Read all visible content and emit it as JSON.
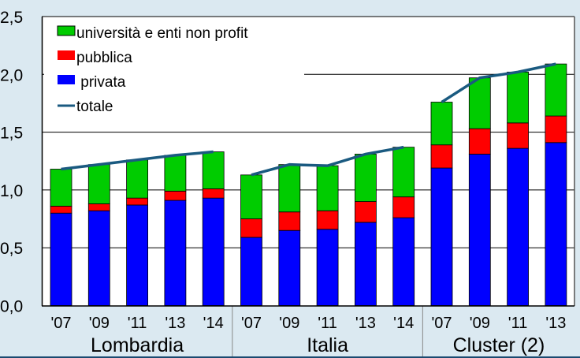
{
  "chart_data": {
    "type": "bar",
    "stacked": true,
    "ylim": [
      0,
      2.5
    ],
    "yticks": [
      "0,0",
      "0,5",
      "1,0",
      "1,5",
      "2,0",
      "2,5"
    ],
    "ytick_values": [
      0,
      0.5,
      1.0,
      1.5,
      2.0,
      2.5
    ],
    "grid": true,
    "legend_placement": "top-left",
    "groups": [
      {
        "label": "Lombardia",
        "categories": [
          "'07",
          "'09",
          "'11",
          "'13",
          "'14"
        ]
      },
      {
        "label": "Italia",
        "categories": [
          "'07",
          "'09",
          "'11",
          "'13",
          "'14"
        ]
      },
      {
        "label": "Cluster (2)",
        "categories": [
          "'07",
          "'09",
          "'11",
          "'13"
        ]
      }
    ],
    "series": [
      {
        "name": "privata",
        "kind": "bar",
        "color": "#0000ff",
        "values": [
          0.8,
          0.82,
          0.87,
          0.91,
          0.93,
          0.59,
          0.65,
          0.66,
          0.72,
          0.76,
          1.19,
          1.31,
          1.36,
          1.41
        ]
      },
      {
        "name": "pubblica",
        "kind": "bar",
        "color": "#ff0000",
        "values": [
          0.06,
          0.06,
          0.06,
          0.08,
          0.08,
          0.16,
          0.16,
          0.16,
          0.18,
          0.18,
          0.2,
          0.22,
          0.22,
          0.23
        ]
      },
      {
        "name": "università e enti non profit",
        "kind": "bar",
        "color": "#00cc00",
        "values": [
          0.32,
          0.34,
          0.33,
          0.31,
          0.32,
          0.38,
          0.41,
          0.39,
          0.41,
          0.43,
          0.37,
          0.44,
          0.44,
          0.45
        ]
      },
      {
        "name": "totale",
        "kind": "line",
        "color": "#1a5a80",
        "values": [
          1.18,
          1.22,
          1.26,
          1.3,
          1.33,
          1.13,
          1.22,
          1.21,
          1.31,
          1.37,
          1.76,
          1.97,
          2.02,
          2.09
        ]
      }
    ],
    "legend": [
      "università e enti non profit",
      "pubblica",
      " privata",
      "totale"
    ]
  }
}
